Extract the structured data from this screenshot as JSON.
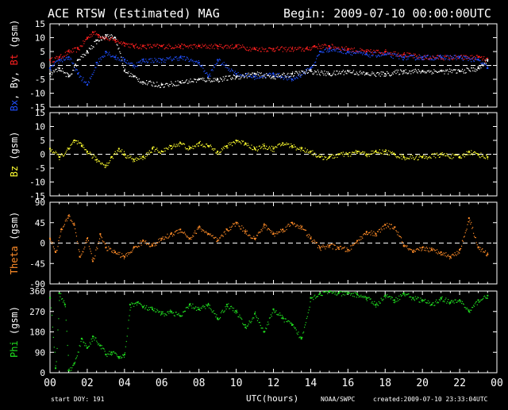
{
  "header": {
    "title": "ACE RTSW (Estimated) MAG",
    "begin": "Begin: 2009-07-10 00:00:00UTC"
  },
  "footer": {
    "start_doy": "start DOY:  191",
    "xlabel": "UTC(hours)",
    "source": "NOAA/SWPC",
    "created": "created:2009-07-10 23:33:04UTC"
  },
  "colors": {
    "background": "#000000",
    "axes": "#ffffff",
    "bt": "#ff2020",
    "bx": "#ffffff",
    "by": "#2050ff",
    "bz": "#ffff30",
    "theta": "#ff8c28",
    "phi": "#20e020"
  },
  "chart_data": [
    {
      "type": "scatter",
      "panel": "B",
      "ylabel_parts": [
        {
          "text": "Bx",
          "color": "#2050ff"
        },
        {
          "text": ", By, ",
          "color": "#ffffff"
        },
        {
          "text": "Bt",
          "color": "#ff2020"
        },
        {
          "text": " (gsm)",
          "color": "#ffffff"
        }
      ],
      "ylim": [
        -15,
        15
      ],
      "yticks": [
        15,
        10,
        5,
        0,
        -5,
        -10,
        -15
      ],
      "zero_line": true,
      "series": [
        {
          "key": "bt",
          "color": "#ff2020",
          "x": [
            0,
            0.5,
            1,
            1.5,
            2,
            2.3,
            2.6,
            3,
            3.5,
            4,
            4.5,
            5,
            6,
            7,
            8,
            9,
            10,
            11,
            12,
            13,
            13.8,
            14.2,
            15,
            16,
            17,
            18,
            19,
            20,
            21,
            22,
            23,
            23.5
          ],
          "values": [
            2,
            3,
            5,
            6,
            10,
            12,
            11,
            10,
            9,
            8,
            7,
            7,
            7,
            7,
            7,
            7,
            7,
            6,
            6,
            6,
            6,
            7,
            7,
            6,
            5,
            5,
            4,
            3,
            3,
            3,
            3,
            2
          ]
        },
        {
          "key": "by",
          "color": "#2050ff",
          "x": [
            0,
            0.5,
            1,
            1.5,
            2,
            2.5,
            3,
            3.5,
            4,
            4.5,
            5,
            6,
            7,
            8,
            8.5,
            9,
            10,
            11,
            12,
            13,
            14,
            14.5,
            15,
            16,
            17,
            18,
            19,
            20,
            21,
            22,
            23,
            23.5
          ],
          "values": [
            -1,
            2,
            3,
            -3,
            -7,
            1,
            5,
            3,
            2,
            0,
            2,
            2,
            3,
            1,
            -4,
            2,
            -3,
            -4,
            -3,
            -5,
            -1,
            5,
            6,
            5,
            4,
            4,
            3,
            3,
            3,
            3,
            2,
            -1
          ]
        },
        {
          "key": "bx",
          "color": "#ffffff",
          "x": [
            0,
            0.5,
            1,
            1.5,
            2,
            2.5,
            3,
            3.5,
            4,
            4.5,
            5,
            6,
            7,
            8,
            9,
            10,
            11,
            12,
            13,
            14,
            15,
            16,
            17,
            18,
            19,
            20,
            21,
            22,
            23,
            23.5
          ],
          "values": [
            -3,
            -1,
            -4,
            2,
            5,
            9,
            11,
            10,
            -2,
            -4,
            -6,
            -7,
            -6,
            -5,
            -5,
            -4,
            -3,
            -4,
            -3,
            -2,
            -3,
            -2,
            -3,
            -3,
            -2,
            -2,
            -2,
            -2,
            -1,
            2
          ]
        }
      ]
    },
    {
      "type": "scatter",
      "panel": "Bz",
      "ylabel_parts": [
        {
          "text": "Bz",
          "color": "#ffff30"
        },
        {
          "text": " (gsm)",
          "color": "#ffffff"
        }
      ],
      "ylim": [
        -15,
        15
      ],
      "yticks": [
        15,
        10,
        5,
        0,
        -5,
        -10,
        -15
      ],
      "zero_line": true,
      "series": [
        {
          "key": "bz",
          "color": "#ffff30",
          "x": [
            0,
            0.5,
            1,
            1.3,
            1.7,
            2,
            2.5,
            3,
            3.3,
            3.7,
            4,
            4.5,
            5,
            5.5,
            6,
            6.5,
            7,
            7.5,
            8,
            8.5,
            9,
            9.5,
            10,
            10.5,
            11,
            11.5,
            12,
            12.5,
            13,
            13.5,
            14,
            14.5,
            15,
            15.5,
            16,
            16.5,
            17,
            17.5,
            18,
            18.5,
            19,
            20,
            21,
            22,
            22.5,
            23,
            23.5
          ],
          "values": [
            2,
            -1,
            2,
            5,
            3,
            1,
            -2,
            -4,
            -1,
            2,
            0,
            -2,
            -1,
            2,
            1,
            3,
            4,
            2,
            4,
            3,
            1,
            3,
            5,
            4,
            2,
            3,
            2,
            4,
            3,
            2,
            1,
            -1,
            -1,
            0,
            0,
            1,
            0,
            1,
            1,
            0,
            -1,
            -1,
            0,
            -1,
            1,
            0,
            -1
          ]
        }
      ]
    },
    {
      "type": "scatter",
      "panel": "Theta",
      "ylabel_parts": [
        {
          "text": "Theta",
          "color": "#ff8c28"
        },
        {
          "text": " (gsm)",
          "color": "#ffffff"
        }
      ],
      "ylim": [
        -90,
        90
      ],
      "yticks": [
        90,
        45,
        0,
        -45,
        -90
      ],
      "zero_line": true,
      "series": [
        {
          "key": "theta",
          "color": "#ff8c28",
          "x": [
            0,
            0.3,
            0.6,
            1,
            1.3,
            1.6,
            2,
            2.3,
            2.7,
            3,
            3.5,
            4,
            4.5,
            5,
            5.5,
            6,
            6.5,
            7,
            7.5,
            8,
            8.5,
            9,
            9.5,
            10,
            10.5,
            11,
            11.5,
            12,
            12.5,
            13,
            13.5,
            14,
            14.5,
            15,
            15.5,
            16,
            16.5,
            17,
            17.5,
            18,
            18.5,
            19,
            19.5,
            20,
            20.5,
            21,
            21.5,
            22,
            22.5,
            23,
            23.5
          ],
          "values": [
            10,
            -20,
            30,
            60,
            40,
            -30,
            10,
            -40,
            20,
            -10,
            -20,
            -30,
            -10,
            5,
            -5,
            10,
            20,
            30,
            10,
            35,
            20,
            5,
            30,
            45,
            25,
            10,
            40,
            20,
            30,
            45,
            35,
            10,
            -10,
            -5,
            -10,
            -15,
            5,
            25,
            20,
            40,
            35,
            -5,
            -20,
            -10,
            -15,
            -20,
            -30,
            -15,
            55,
            -10,
            -25
          ]
        }
      ]
    },
    {
      "type": "scatter",
      "panel": "Phi",
      "ylabel_parts": [
        {
          "text": "Phi",
          "color": "#20e020"
        },
        {
          "text": " (gsm)",
          "color": "#ffffff"
        }
      ],
      "ylim": [
        0,
        360
      ],
      "yticks": [
        360,
        270,
        180,
        90,
        0
      ],
      "zero_line": false,
      "series": [
        {
          "key": "phi",
          "color": "#20e020",
          "x": [
            0,
            0.3,
            0.5,
            0.8,
            1,
            1.3,
            1.7,
            2,
            2.3,
            2.7,
            3,
            3.3,
            3.7,
            4,
            4.3,
            4.7,
            5,
            5.5,
            6,
            6.5,
            7,
            7.5,
            8,
            8.5,
            9,
            9.5,
            10,
            10.5,
            11,
            11.5,
            12,
            12.5,
            13,
            13.5,
            14,
            14.5,
            15,
            15.5,
            16,
            16.5,
            17,
            17.5,
            18,
            18.5,
            19,
            19.5,
            20,
            20.5,
            21,
            21.5,
            22,
            22.5,
            23,
            23.5
          ],
          "values": [
            330,
            20,
            350,
            300,
            10,
            40,
            150,
            110,
            160,
            120,
            80,
            90,
            70,
            80,
            300,
            310,
            290,
            280,
            260,
            270,
            250,
            300,
            280,
            300,
            240,
            300,
            270,
            200,
            260,
            180,
            280,
            240,
            210,
            150,
            330,
            350,
            360,
            350,
            350,
            345,
            330,
            300,
            340,
            320,
            350,
            330,
            320,
            300,
            330,
            310,
            320,
            270,
            320,
            340
          ]
        }
      ]
    }
  ],
  "xaxis": {
    "xlim": [
      0,
      24
    ],
    "ticks": [
      "00",
      "02",
      "04",
      "06",
      "08",
      "10",
      "12",
      "14",
      "16",
      "18",
      "20",
      "22",
      "00"
    ]
  }
}
